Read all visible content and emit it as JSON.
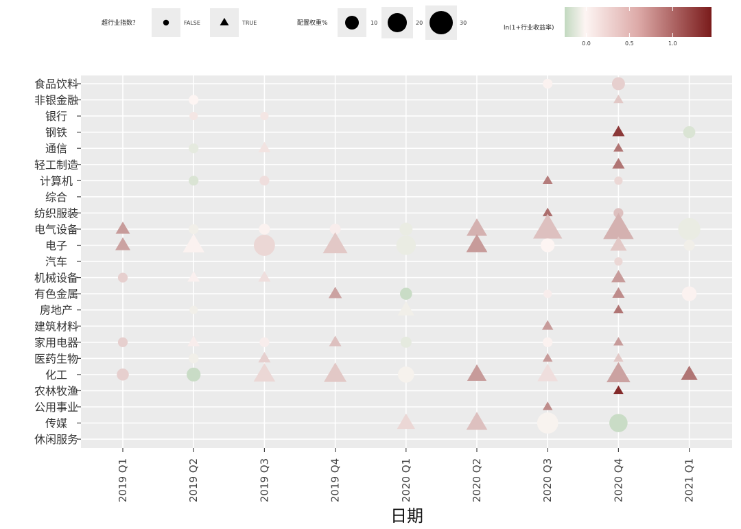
{
  "chart_data": {
    "type": "scatter",
    "title": "",
    "xlabel": "日期",
    "ylabel": "",
    "x_categories": [
      "2019 Q1",
      "2019 Q2",
      "2019 Q3",
      "2019 Q4",
      "2020 Q1",
      "2020 Q2",
      "2020 Q3",
      "2020 Q4",
      "2021 Q1"
    ],
    "y_categories": [
      "食品饮料",
      "非银金融",
      "银行",
      "钢铁",
      "通信",
      "轻工制造",
      "计算机",
      "综合",
      "纺织服装",
      "电气设备",
      "电子",
      "汽车",
      "机械设备",
      "有色金属",
      "房地产",
      "建筑材料",
      "家用电器",
      "医药生物",
      "化工",
      "农林牧渔",
      "公用事业",
      "传媒",
      "休闲服务"
    ],
    "legend": {
      "shape": {
        "title": "超行业指数？",
        "items": [
          {
            "label": "FALSE",
            "shape": "circle"
          },
          {
            "label": "TRUE",
            "shape": "triangle"
          }
        ]
      },
      "size": {
        "title": "配置权重%",
        "items": [
          {
            "label": "10",
            "value": 10
          },
          {
            "label": "20",
            "value": 20
          },
          {
            "label": "30",
            "value": 30
          }
        ]
      },
      "color": {
        "title": "ln(1+行业收益率)",
        "ticks": [
          "0.0",
          "0.5",
          "1.0"
        ],
        "tick_values": [
          0.0,
          0.5,
          1.0
        ],
        "range": [
          -0.25,
          1.45
        ],
        "low_color": "#c2d9c0",
        "mid_color": "#fdf5f3",
        "high_color": "#7a1b1b"
      }
    },
    "points": [
      {
        "x": "2019 Q1",
        "y": "电气设备",
        "size": 7,
        "color": 0.6,
        "over": true
      },
      {
        "x": "2019 Q1",
        "y": "电子",
        "size": 8,
        "color": 0.55,
        "over": true
      },
      {
        "x": "2019 Q1",
        "y": "机械设备",
        "size": 3,
        "color": 0.25,
        "over": false
      },
      {
        "x": "2019 Q1",
        "y": "家用电器",
        "size": 3,
        "color": 0.25,
        "over": false
      },
      {
        "x": "2019 Q1",
        "y": "化工",
        "size": 5,
        "color": 0.25,
        "over": false
      },
      {
        "x": "2019 Q2",
        "y": "非银金融",
        "size": 3,
        "color": 0.0,
        "over": false
      },
      {
        "x": "2019 Q2",
        "y": "银行",
        "size": 2,
        "color": 0.1,
        "over": false
      },
      {
        "x": "2019 Q2",
        "y": "通信",
        "size": 3,
        "color": -0.1,
        "over": false
      },
      {
        "x": "2019 Q2",
        "y": "计算机",
        "size": 3,
        "color": -0.15,
        "over": false
      },
      {
        "x": "2019 Q2",
        "y": "电气设备",
        "size": 3,
        "color": -0.05,
        "over": false
      },
      {
        "x": "2019 Q2",
        "y": "电子",
        "size": 18,
        "color": 0.02,
        "over": true
      },
      {
        "x": "2019 Q2",
        "y": "机械设备",
        "size": 5,
        "color": 0.03,
        "over": true
      },
      {
        "x": "2019 Q2",
        "y": "房地产",
        "size": 2,
        "color": -0.05,
        "over": false
      },
      {
        "x": "2019 Q2",
        "y": "家用电器",
        "size": 5,
        "color": 0.05,
        "over": true
      },
      {
        "x": "2019 Q2",
        "y": "医药生物",
        "size": 3,
        "color": -0.05,
        "over": false
      },
      {
        "x": "2019 Q2",
        "y": "化工",
        "size": 7,
        "color": -0.22,
        "over": false
      },
      {
        "x": "2019 Q3",
        "y": "银行",
        "size": 2,
        "color": 0.1,
        "over": false
      },
      {
        "x": "2019 Q3",
        "y": "通信",
        "size": 5,
        "color": 0.12,
        "over": true
      },
      {
        "x": "2019 Q3",
        "y": "计算机",
        "size": 3,
        "color": 0.15,
        "over": false
      },
      {
        "x": "2019 Q3",
        "y": "电气设备",
        "size": 4,
        "color": 0.02,
        "over": false
      },
      {
        "x": "2019 Q3",
        "y": "电子",
        "size": 18,
        "color": 0.2,
        "over": false
      },
      {
        "x": "2019 Q3",
        "y": "机械设备",
        "size": 5,
        "color": 0.15,
        "over": true
      },
      {
        "x": "2019 Q3",
        "y": "家用电器",
        "size": 3,
        "color": 0.05,
        "over": false
      },
      {
        "x": "2019 Q3",
        "y": "医药生物",
        "size": 5,
        "color": 0.25,
        "over": true
      },
      {
        "x": "2019 Q3",
        "y": "化工",
        "size": 18,
        "color": 0.2,
        "over": true
      },
      {
        "x": "2019 Q4",
        "y": "电气设备",
        "size": 4,
        "color": 0.05,
        "over": false
      },
      {
        "x": "2019 Q4",
        "y": "电子",
        "size": 24,
        "color": 0.3,
        "over": true
      },
      {
        "x": "2019 Q4",
        "y": "有色金属",
        "size": 6,
        "color": 0.55,
        "over": true
      },
      {
        "x": "2019 Q4",
        "y": "家用电器",
        "size": 5,
        "color": 0.35,
        "over": true
      },
      {
        "x": "2019 Q4",
        "y": "化工",
        "size": 20,
        "color": 0.3,
        "over": true
      },
      {
        "x": "2020 Q1",
        "y": "电气设备",
        "size": 6,
        "color": -0.08,
        "over": false
      },
      {
        "x": "2020 Q1",
        "y": "电子",
        "size": 15,
        "color": -0.08,
        "over": false
      },
      {
        "x": "2020 Q1",
        "y": "有色金属",
        "size": 5,
        "color": -0.22,
        "over": false
      },
      {
        "x": "2020 Q1",
        "y": "房地产",
        "size": 10,
        "color": -0.05,
        "over": true
      },
      {
        "x": "2020 Q1",
        "y": "家用电器",
        "size": 4,
        "color": -0.1,
        "over": false
      },
      {
        "x": "2020 Q1",
        "y": "化工",
        "size": 10,
        "color": -0.03,
        "over": false
      },
      {
        "x": "2020 Q1",
        "y": "传媒",
        "size": 12,
        "color": 0.2,
        "over": true
      },
      {
        "x": "2020 Q2",
        "y": "电气设备",
        "size": 16,
        "color": 0.45,
        "over": true
      },
      {
        "x": "2020 Q2",
        "y": "电子",
        "size": 17,
        "color": 0.6,
        "over": true
      },
      {
        "x": "2020 Q2",
        "y": "化工",
        "size": 14,
        "color": 0.6,
        "over": true
      },
      {
        "x": "2020 Q2",
        "y": "传媒",
        "size": 17,
        "color": 0.35,
        "over": true
      },
      {
        "x": "2020 Q3",
        "y": "食品饮料",
        "size": 3,
        "color": 0.02,
        "over": false
      },
      {
        "x": "2020 Q3",
        "y": "计算机",
        "size": 3,
        "color": 0.8,
        "over": true
      },
      {
        "x": "2020 Q3",
        "y": "纺织服装",
        "size": 3,
        "color": 0.9,
        "over": true
      },
      {
        "x": "2020 Q3",
        "y": "电气设备",
        "size": 34,
        "color": 0.35,
        "over": true
      },
      {
        "x": "2020 Q3",
        "y": "电子",
        "size": 7,
        "color": 0.0,
        "over": false
      },
      {
        "x": "2020 Q3",
        "y": "有色金属",
        "size": 2,
        "color": 0.05,
        "over": false
      },
      {
        "x": "2020 Q3",
        "y": "建筑材料",
        "size": 4,
        "color": 0.6,
        "over": true
      },
      {
        "x": "2020 Q3",
        "y": "家用电器",
        "size": 3,
        "color": 0.02,
        "over": false
      },
      {
        "x": "2020 Q3",
        "y": "医药生物",
        "size": 3,
        "color": 0.6,
        "over": true
      },
      {
        "x": "2020 Q3",
        "y": "化工",
        "size": 16,
        "color": 0.15,
        "over": true
      },
      {
        "x": "2020 Q3",
        "y": "公用事业",
        "size": 3,
        "color": 0.7,
        "over": true
      },
      {
        "x": "2020 Q3",
        "y": "传媒",
        "size": 18,
        "color": -0.02,
        "over": false
      },
      {
        "x": "2020 Q4",
        "y": "食品饮料",
        "size": 6,
        "color": 0.25,
        "over": false
      },
      {
        "x": "2020 Q4",
        "y": "非银金融",
        "size": 3,
        "color": 0.3,
        "over": true
      },
      {
        "x": "2020 Q4",
        "y": "钢铁",
        "size": 5,
        "color": 1.25,
        "over": true
      },
      {
        "x": "2020 Q4",
        "y": "通信",
        "size": 3,
        "color": 0.85,
        "over": true
      },
      {
        "x": "2020 Q4",
        "y": "轻工制造",
        "size": 5,
        "color": 0.85,
        "over": true
      },
      {
        "x": "2020 Q4",
        "y": "计算机",
        "size": 2,
        "color": 0.2,
        "over": false
      },
      {
        "x": "2020 Q4",
        "y": "纺织服装",
        "size": 3,
        "color": 0.35,
        "over": false
      },
      {
        "x": "2020 Q4",
        "y": "电气设备",
        "size": 38,
        "color": 0.45,
        "over": true
      },
      {
        "x": "2020 Q4",
        "y": "电子",
        "size": 10,
        "color": 0.3,
        "over": true
      },
      {
        "x": "2020 Q4",
        "y": "汽车",
        "size": 2,
        "color": 0.2,
        "over": false
      },
      {
        "x": "2020 Q4",
        "y": "机械设备",
        "size": 7,
        "color": 0.6,
        "over": true
      },
      {
        "x": "2020 Q4",
        "y": "有色金属",
        "size": 5,
        "color": 0.7,
        "over": true
      },
      {
        "x": "2020 Q4",
        "y": "房地产",
        "size": 3,
        "color": 0.85,
        "over": true
      },
      {
        "x": "2020 Q4",
        "y": "家用电器",
        "size": 3,
        "color": 0.6,
        "over": true
      },
      {
        "x": "2020 Q4",
        "y": "医药生物",
        "size": 3,
        "color": 0.3,
        "over": true
      },
      {
        "x": "2020 Q4",
        "y": "化工",
        "size": 22,
        "color": 0.55,
        "over": true
      },
      {
        "x": "2020 Q4",
        "y": "农林牧渔",
        "size": 3,
        "color": 1.35,
        "over": true
      },
      {
        "x": "2020 Q4",
        "y": "传媒",
        "size": 13,
        "color": -0.22,
        "over": false
      },
      {
        "x": "2021 Q1",
        "y": "钢铁",
        "size": 5,
        "color": -0.15,
        "over": false
      },
      {
        "x": "2021 Q1",
        "y": "电气设备",
        "size": 20,
        "color": -0.08,
        "over": false
      },
      {
        "x": "2021 Q1",
        "y": "电子",
        "size": 4,
        "color": -0.05,
        "over": false
      },
      {
        "x": "2021 Q1",
        "y": "有色金属",
        "size": 8,
        "color": 0.02,
        "over": false
      },
      {
        "x": "2021 Q1",
        "y": "化工",
        "size": 10,
        "color": 0.85,
        "over": true
      }
    ]
  }
}
